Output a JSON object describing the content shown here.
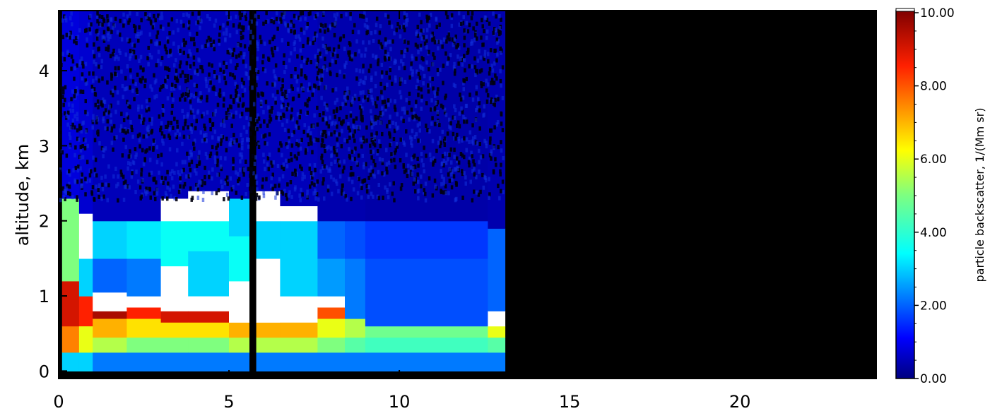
{
  "chart_data": {
    "type": "heatmap",
    "title": "",
    "xlabel": "",
    "ylabel": "altitude, km",
    "xlim": [
      0,
      24
    ],
    "ylim": [
      -0.1,
      4.8
    ],
    "x_ticks": [
      "0",
      "5",
      "10",
      "15",
      "20"
    ],
    "y_ticks": [
      "0",
      "1",
      "2",
      "3",
      "4"
    ],
    "data_end_x": 13.1,
    "no_data_color": "#000000",
    "colorbar": {
      "label": "particle backscatter, 1/(Mm sr)",
      "range": [
        0,
        10
      ],
      "ticks": [
        "0.00",
        "2.00",
        "4.00",
        "6.00",
        "8.00",
        "10.00"
      ],
      "saturated_color": "#ffffff",
      "colormap": "jet"
    },
    "columns": [
      {
        "x": [
          0.1,
          0.6
        ],
        "layers": [
          [
            0.0,
            0.25,
            3.0
          ],
          [
            0.25,
            0.6,
            7.5
          ],
          [
            0.6,
            1.2,
            9.0
          ],
          [
            1.2,
            2.3,
            5.0
          ],
          [
            2.3,
            4.8,
            0.8
          ]
        ]
      },
      {
        "x": [
          0.6,
          1.0
        ],
        "layers": [
          [
            0.0,
            0.25,
            3.0
          ],
          [
            0.25,
            0.6,
            6.0
          ],
          [
            0.6,
            1.0,
            8.5
          ],
          [
            1.0,
            1.5,
            3.0
          ],
          [
            1.5,
            2.1,
            11.0
          ],
          [
            2.1,
            4.8,
            0.7
          ]
        ]
      },
      {
        "x": [
          1.0,
          2.0
        ],
        "layers": [
          [
            0.0,
            0.25,
            2.2
          ],
          [
            0.25,
            0.45,
            5.5
          ],
          [
            0.45,
            0.7,
            7.0
          ],
          [
            0.7,
            0.8,
            9.5
          ],
          [
            0.8,
            1.05,
            11.0
          ],
          [
            1.05,
            1.5,
            2.0
          ],
          [
            1.5,
            2.0,
            3.0
          ],
          [
            2.0,
            4.8,
            0.5
          ]
        ]
      },
      {
        "x": [
          2.0,
          3.0
        ],
        "layers": [
          [
            0.0,
            0.25,
            2.2
          ],
          [
            0.25,
            0.45,
            5.0
          ],
          [
            0.45,
            0.7,
            6.5
          ],
          [
            0.7,
            0.85,
            8.5
          ],
          [
            0.85,
            1.0,
            11.0
          ],
          [
            1.0,
            1.5,
            2.2
          ],
          [
            1.5,
            2.0,
            3.2
          ],
          [
            2.0,
            4.8,
            0.5
          ]
        ]
      },
      {
        "x": [
          3.0,
          3.8
        ],
        "layers": [
          [
            0.0,
            0.25,
            2.2
          ],
          [
            0.25,
            0.45,
            5.0
          ],
          [
            0.45,
            0.65,
            6.5
          ],
          [
            0.65,
            0.8,
            9.0
          ],
          [
            0.8,
            1.4,
            11.0
          ],
          [
            1.4,
            2.0,
            3.5
          ],
          [
            2.0,
            2.3,
            11.0
          ],
          [
            2.3,
            4.8,
            0.5
          ]
        ]
      },
      {
        "x": [
          3.8,
          5.0
        ],
        "layers": [
          [
            0.0,
            0.25,
            2.2
          ],
          [
            0.25,
            0.45,
            5.0
          ],
          [
            0.45,
            0.65,
            6.5
          ],
          [
            0.65,
            0.8,
            9.0
          ],
          [
            0.8,
            1.0,
            11.0
          ],
          [
            1.0,
            1.6,
            3.0
          ],
          [
            1.6,
            2.0,
            3.5
          ],
          [
            2.0,
            2.4,
            11.0
          ],
          [
            2.4,
            4.8,
            0.5
          ]
        ]
      },
      {
        "x": [
          5.0,
          5.6
        ],
        "layers": [
          [
            0.0,
            0.25,
            2.2
          ],
          [
            0.25,
            0.45,
            5.5
          ],
          [
            0.45,
            0.65,
            7.0
          ],
          [
            0.65,
            1.2,
            11.0
          ],
          [
            1.2,
            1.8,
            3.5
          ],
          [
            1.8,
            2.3,
            3.0
          ],
          [
            2.3,
            4.8,
            0.5
          ]
        ]
      },
      {
        "x": [
          5.6,
          5.8
        ],
        "layers": [
          [
            0.0,
            4.8,
            -1
          ]
        ]
      },
      {
        "x": [
          5.8,
          6.5
        ],
        "layers": [
          [
            0.0,
            0.25,
            2.2
          ],
          [
            0.25,
            0.45,
            5.5
          ],
          [
            0.45,
            0.65,
            7.0
          ],
          [
            0.65,
            1.5,
            11.0
          ],
          [
            1.5,
            2.0,
            3.0
          ],
          [
            2.0,
            2.4,
            11.0
          ],
          [
            2.4,
            4.8,
            0.5
          ]
        ]
      },
      {
        "x": [
          6.5,
          7.6
        ],
        "layers": [
          [
            0.0,
            0.25,
            2.2
          ],
          [
            0.25,
            0.45,
            5.5
          ],
          [
            0.45,
            0.65,
            7.0
          ],
          [
            0.65,
            1.0,
            11.0
          ],
          [
            1.0,
            1.5,
            3.0
          ],
          [
            1.5,
            2.0,
            3.0
          ],
          [
            2.0,
            2.2,
            11.0
          ],
          [
            2.2,
            4.8,
            0.5
          ]
        ]
      },
      {
        "x": [
          7.6,
          8.4
        ],
        "layers": [
          [
            0.0,
            0.25,
            2.2
          ],
          [
            0.25,
            0.45,
            5.0
          ],
          [
            0.45,
            0.7,
            6.0
          ],
          [
            0.7,
            0.85,
            8.0
          ],
          [
            0.85,
            1.0,
            11.0
          ],
          [
            1.0,
            1.5,
            2.5
          ],
          [
            1.5,
            2.0,
            2.0
          ],
          [
            2.0,
            4.8,
            0.4
          ]
        ]
      },
      {
        "x": [
          8.4,
          9.0
        ],
        "layers": [
          [
            0.0,
            0.25,
            2.2
          ],
          [
            0.25,
            0.45,
            4.5
          ],
          [
            0.45,
            0.7,
            5.5
          ],
          [
            0.7,
            1.5,
            2.2
          ],
          [
            1.5,
            2.0,
            1.8
          ],
          [
            2.0,
            4.8,
            0.4
          ]
        ]
      },
      {
        "x": [
          9.0,
          12.6
        ],
        "layers": [
          [
            0.0,
            0.25,
            2.2
          ],
          [
            0.25,
            0.45,
            4.2
          ],
          [
            0.45,
            0.6,
            4.8
          ],
          [
            0.6,
            1.5,
            1.8
          ],
          [
            1.5,
            2.0,
            1.6
          ],
          [
            2.0,
            4.8,
            0.35
          ]
        ]
      },
      {
        "x": [
          12.6,
          13.1
        ],
        "layers": [
          [
            0.0,
            0.25,
            2.2
          ],
          [
            0.25,
            0.45,
            4.5
          ],
          [
            0.45,
            0.6,
            6.0
          ],
          [
            0.6,
            0.8,
            11.0
          ],
          [
            0.8,
            1.9,
            2.0
          ],
          [
            1.9,
            4.8,
            0.4
          ]
        ]
      }
    ]
  }
}
